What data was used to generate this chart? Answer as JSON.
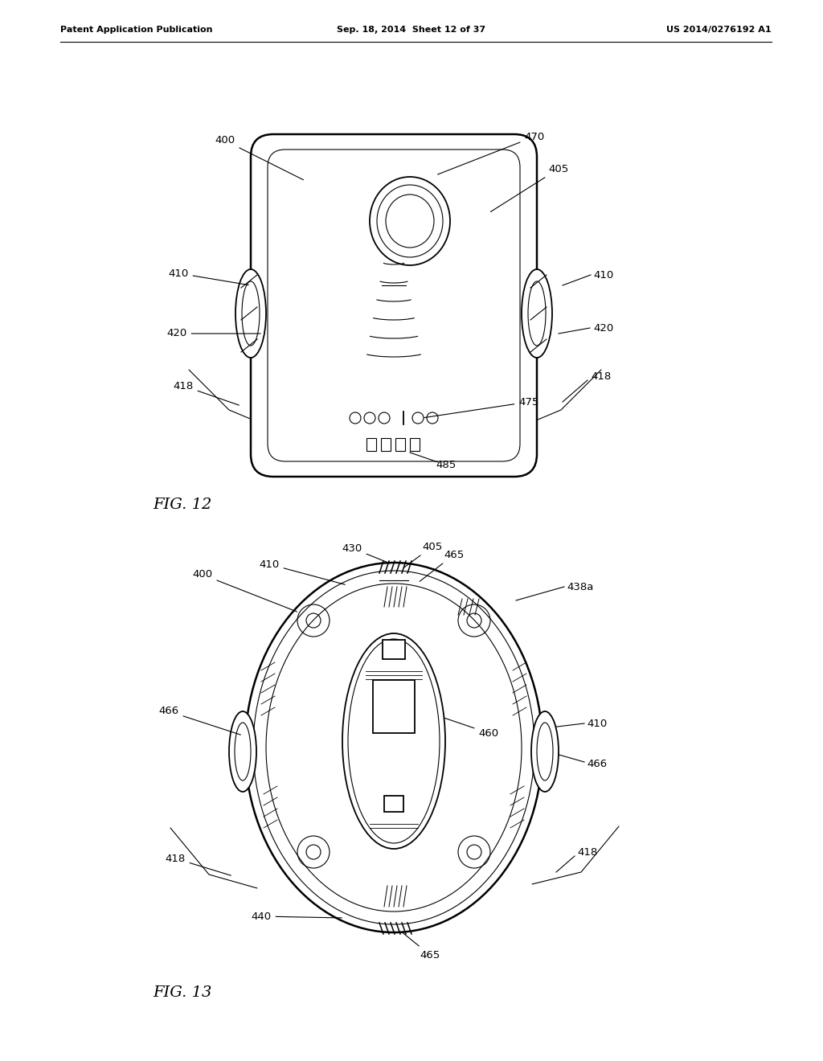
{
  "bg_color": "#ffffff",
  "line_color": "#000000",
  "header_left": "Patent Application Publication",
  "header_center": "Sep. 18, 2014  Sheet 12 of 37",
  "header_right": "US 2014/0276192 A1",
  "fig12_label": "FIG. 12",
  "fig13_label": "FIG. 13",
  "figsize": [
    10.24,
    13.2
  ],
  "dpi": 100
}
